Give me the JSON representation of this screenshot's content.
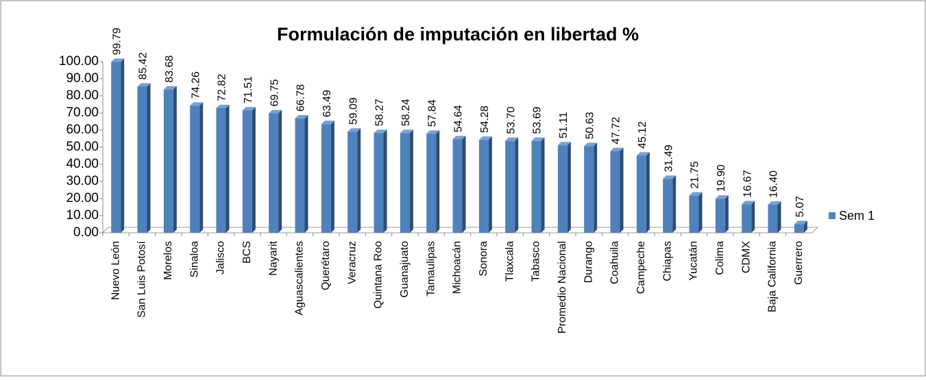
{
  "chart_data": {
    "type": "bar",
    "title": "Formulación de imputación en libertad %",
    "categories": [
      "Nuevo León",
      "San Luis Potosí",
      "Morelos",
      "Sinaloa",
      "Jalisco",
      "BCS",
      "Nayarit",
      "Aguascalientes",
      "Querétaro",
      "Veracruz",
      "Quintana Roo",
      "Guanajuato",
      "Tamaulipas",
      "Michoacán",
      "Sonora",
      "Tlaxcala",
      "Tabasco",
      "Promedio Nacional",
      "Durango",
      "Coahuila",
      "Campeche",
      "Chiapas",
      "Yucatán",
      "Colima",
      "CDMX",
      "Baja California",
      "Guerrero"
    ],
    "series": [
      {
        "name": "Sem 1",
        "color": "#4f81bd",
        "values": [
          99.79,
          85.42,
          83.68,
          74.26,
          72.82,
          71.51,
          69.75,
          66.78,
          63.49,
          59.09,
          58.27,
          58.24,
          57.84,
          54.64,
          54.28,
          53.7,
          53.69,
          51.11,
          50.63,
          47.72,
          45.12,
          31.49,
          21.75,
          19.9,
          16.67,
          16.4,
          5.07
        ],
        "value_labels": [
          "99.79",
          "85.42",
          "83.68",
          "74.26",
          "72.82",
          "71.51",
          "69.75",
          "66.78",
          "63.49",
          "59.09",
          "58.27",
          "58.24",
          "57.84",
          "54.64",
          "54.28",
          "53.70",
          "53.69",
          "51.11",
          "50.63",
          "47.72",
          "45.12",
          "31.49",
          "21.75",
          "19.90",
          "16.67",
          "16.40",
          "5.07"
        ]
      }
    ],
    "ylim": [
      0,
      100
    ],
    "yticks": [
      {
        "value": 0,
        "label": "0.00"
      },
      {
        "value": 10,
        "label": "10.00"
      },
      {
        "value": 20,
        "label": "20.00"
      },
      {
        "value": 30,
        "label": "30.00"
      },
      {
        "value": 40,
        "label": "40.00"
      },
      {
        "value": 50,
        "label": "50.00"
      },
      {
        "value": 60,
        "label": "60.00"
      },
      {
        "value": 70,
        "label": "70.00"
      },
      {
        "value": 80,
        "label": "80.00"
      },
      {
        "value": 90,
        "label": "90.00"
      },
      {
        "value": 100,
        "label": "100.00"
      }
    ],
    "legend": "right"
  }
}
